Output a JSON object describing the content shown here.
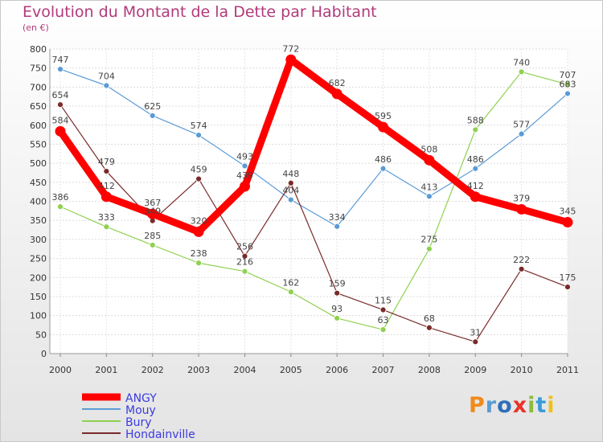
{
  "title": "Evolution du Montant de la Dette par Habitant",
  "subtitle": "(en €)",
  "logo": {
    "text": "Proxiti",
    "letter_colors": [
      "#f08a1c",
      "#5a9bd4",
      "#2f6fb8",
      "#e8332a",
      "#8cbc3c",
      "#3a9bd9",
      "#f0c01c"
    ]
  },
  "chart_data": {
    "type": "line",
    "title": "Evolution du Montant de la Dette par Habitant",
    "subtitle": "(en €)",
    "xlabel": "",
    "ylabel": "",
    "x": [
      "2000",
      "2001",
      "2002",
      "2003",
      "2004",
      "2005",
      "2006",
      "2007",
      "2008",
      "2009",
      "2010",
      "2011"
    ],
    "ylim": [
      0,
      800
    ],
    "yticks": [
      0,
      50,
      100,
      150,
      200,
      250,
      300,
      350,
      400,
      450,
      500,
      550,
      600,
      650,
      700,
      750,
      800
    ],
    "grid": true,
    "legend": "bottom-left",
    "series": [
      {
        "name": "Mouy",
        "color": "#5b9bd5",
        "values": [
          747,
          704,
          625,
          574,
          493,
          404,
          334,
          486,
          413,
          486,
          577,
          683
        ]
      },
      {
        "name": "Bury",
        "color": "#8fd14f",
        "values": [
          386,
          333,
          285,
          238,
          216,
          162,
          93,
          63,
          275,
          588,
          740,
          707
        ]
      },
      {
        "name": "Hondainville",
        "color": "#7a2a2a",
        "values": [
          654,
          479,
          349,
          459,
          256,
          448,
          159,
          115,
          68,
          31,
          222,
          175
        ]
      },
      {
        "name": "ANGY",
        "color": "#ff0000",
        "values": [
          584,
          412,
          367,
          320,
          439,
          772,
          682,
          595,
          508,
          412,
          379,
          345
        ]
      }
    ],
    "legend_order": [
      "ANGY",
      "Mouy",
      "Bury",
      "Hondainville"
    ]
  }
}
